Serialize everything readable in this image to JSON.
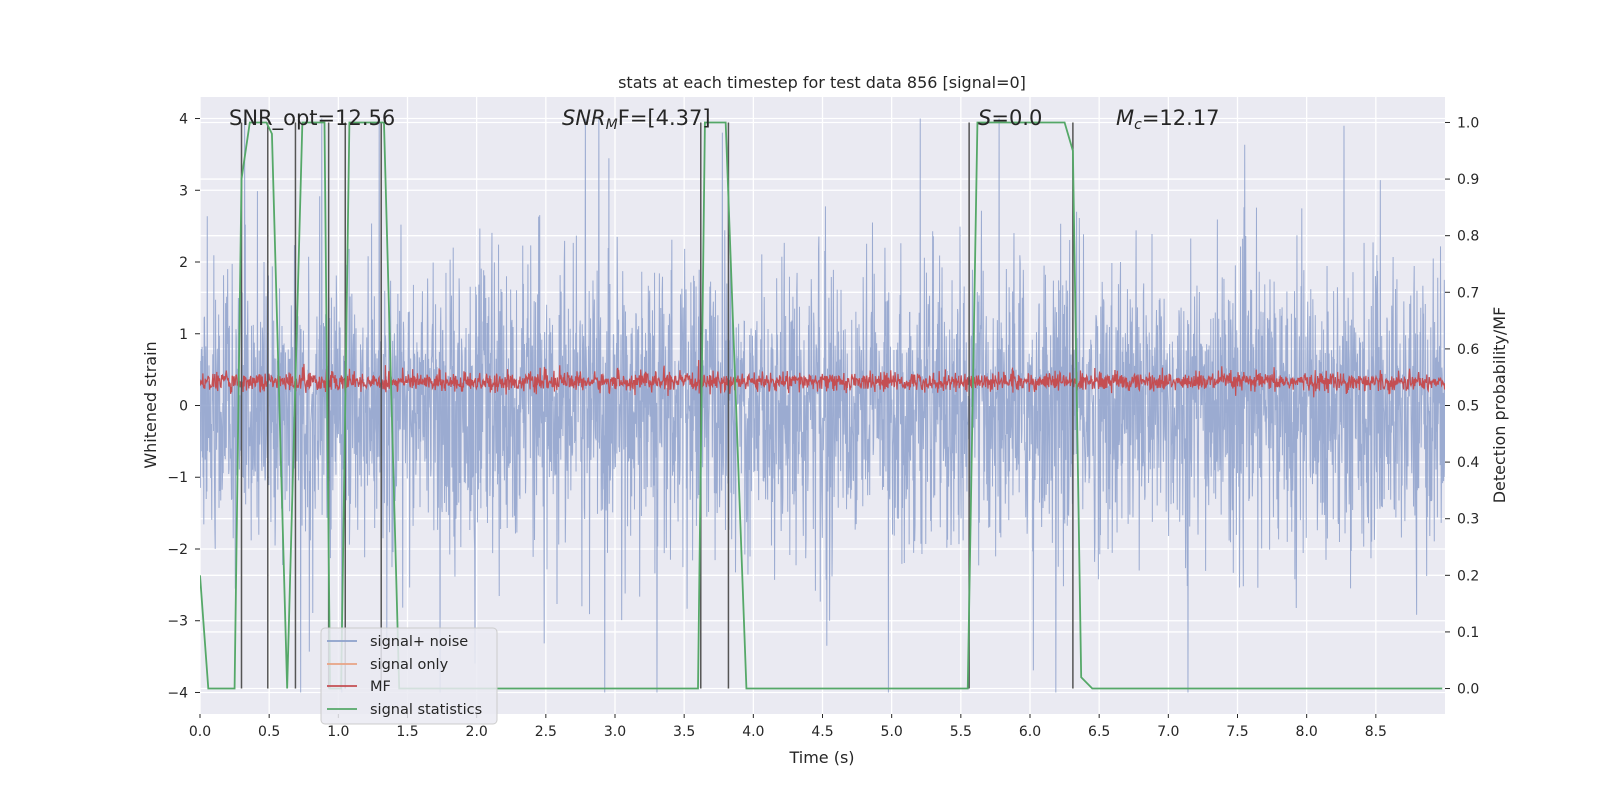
{
  "chart_data": {
    "type": "line",
    "title": "stats at each timestep for test data 856 [signal=0]",
    "xlabel": "Time (s)",
    "ylabel_left": "Whitened strain",
    "ylabel_right": "Detection probability/MF",
    "xlim": [
      0.0,
      9.0
    ],
    "ylim_left": [
      -4.3,
      4.3
    ],
    "ylim_right": [
      -0.045,
      1.045
    ],
    "xticks": [
      "0.0",
      "0.5",
      "1.0",
      "1.5",
      "2.0",
      "2.5",
      "3.0",
      "3.5",
      "4.0",
      "4.5",
      "5.0",
      "5.5",
      "6.0",
      "6.5",
      "7.0",
      "7.5",
      "8.0",
      "8.5"
    ],
    "xtick_values": [
      0.0,
      0.5,
      1.0,
      1.5,
      2.0,
      2.5,
      3.0,
      3.5,
      4.0,
      4.5,
      5.0,
      5.5,
      6.0,
      6.5,
      7.0,
      7.5,
      8.0,
      8.5
    ],
    "yticks_left": [
      "4",
      "3",
      "2",
      "1",
      "0",
      "−1",
      "−2",
      "−3",
      "−4"
    ],
    "ytick_values_left": [
      4,
      3,
      2,
      1,
      0,
      -1,
      -2,
      -3,
      -4
    ],
    "yticks_right": [
      "1.0",
      "0.9",
      "0.8",
      "0.7",
      "0.6",
      "0.5",
      "0.4",
      "0.3",
      "0.2",
      "0.1",
      "0.0"
    ],
    "ytick_values_right": [
      1.0,
      0.9,
      0.8,
      0.7,
      0.6,
      0.5,
      0.4,
      0.3,
      0.2,
      0.1,
      0.0
    ],
    "grid": true,
    "legend_placement": "lower-left",
    "annotations": {
      "snr_opt": "SNR_opt=12.56",
      "snr_mf_main": "SNR",
      "snr_mf_sub": "M",
      "snr_mf_rest": "F=[4.37]",
      "s_main": "S",
      "s_rest": "=0.0",
      "mc_main": "M",
      "mc_sub": "c",
      "mc_rest": "=12.17"
    },
    "series": [
      {
        "name": "signal+ noise",
        "color": "#8da0cb",
        "axis": "left",
        "envelope": "noise, roughly ±1.6 with spikes to about ±4"
      },
      {
        "name": "signal only",
        "color": "#e8a384",
        "axis": "left",
        "values": []
      },
      {
        "name": "MF",
        "color": "#c44e52",
        "axis": "left",
        "envelope": "noise centered near 0.3, range about 0.05 to 0.95"
      },
      {
        "name": "signal statistics",
        "color": "#55a868",
        "axis": "right",
        "x": [
          0.0,
          0.06,
          0.25,
          0.3,
          0.36,
          0.48,
          0.52,
          0.63,
          0.74,
          0.78,
          0.9,
          0.94,
          1.02,
          1.08,
          1.14,
          1.27,
          1.33,
          1.44,
          1.5,
          3.6,
          3.65,
          3.74,
          3.8,
          3.95,
          5.55,
          5.62,
          6.25,
          6.31,
          6.37,
          6.45,
          8.98
        ],
        "values": [
          0.2,
          0.0,
          0.0,
          0.9,
          1.0,
          1.0,
          0.98,
          0.0,
          1.0,
          1.0,
          1.0,
          0.0,
          0.0,
          1.0,
          1.0,
          1.0,
          1.0,
          0.0,
          0.0,
          0.0,
          1.0,
          1.0,
          1.0,
          0.0,
          0.0,
          1.0,
          1.0,
          0.95,
          0.02,
          0.0,
          0.0
        ]
      }
    ],
    "vertical_markers_x": [
      0.3,
      0.49,
      0.69,
      0.93,
      1.05,
      1.31,
      3.62,
      3.82,
      5.56,
      6.31
    ]
  },
  "legend": {
    "items": [
      {
        "label": "signal+ noise",
        "color": "#8da0cb"
      },
      {
        "label": "signal only",
        "color": "#e8a384"
      },
      {
        "label": "MF",
        "color": "#c44e52"
      },
      {
        "label": "signal statistics",
        "color": "#55a868"
      }
    ]
  },
  "style": {
    "plot_background": "#eaeaf2",
    "grid_color": "#ffffff",
    "marker_color": "#555555"
  }
}
